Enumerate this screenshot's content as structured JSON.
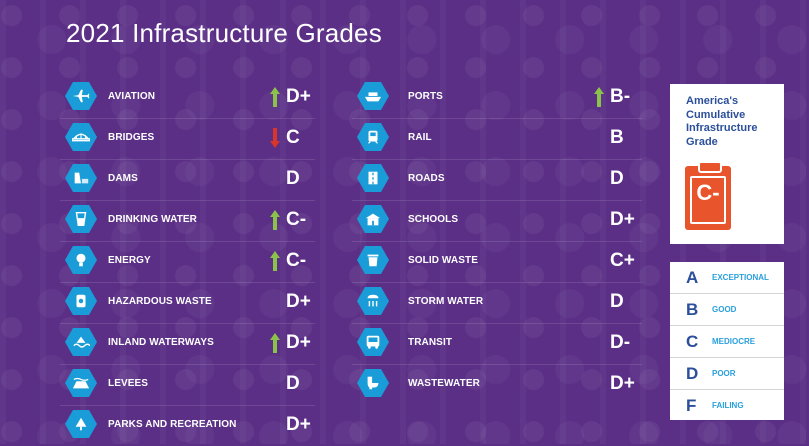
{
  "title": "2021 Infrastructure Grades",
  "colors": {
    "background": "#5b2f86",
    "icon": "#1a9cd8",
    "up": "#8bc34a",
    "down": "#d9352a",
    "cumulative": "#e8542c",
    "legend_word": "#2aa0dc"
  },
  "left_categories": [
    {
      "label": "AVIATION",
      "grade": "D+",
      "trend": "up",
      "icon": "airplane-icon"
    },
    {
      "label": "BRIDGES",
      "grade": "C",
      "trend": "down",
      "icon": "bridge-icon"
    },
    {
      "label": "DAMS",
      "grade": "D",
      "trend": "",
      "icon": "dam-icon"
    },
    {
      "label": "DRINKING WATER",
      "grade": "C-",
      "trend": "up",
      "icon": "water-glass-icon"
    },
    {
      "label": "ENERGY",
      "grade": "C-",
      "trend": "up",
      "icon": "lightbulb-icon"
    },
    {
      "label": "HAZARDOUS WASTE",
      "grade": "D+",
      "trend": "",
      "icon": "hazard-barrel-icon"
    },
    {
      "label": "INLAND WATERWAYS",
      "grade": "D+",
      "trend": "up",
      "icon": "waterway-icon"
    },
    {
      "label": "LEVEES",
      "grade": "D",
      "trend": "",
      "icon": "levee-icon"
    },
    {
      "label": "PARKS AND RECREATION",
      "grade": "D+",
      "trend": "",
      "icon": "tree-icon"
    }
  ],
  "right_categories": [
    {
      "label": "PORTS",
      "grade": "B-",
      "trend": "up",
      "icon": "ship-icon"
    },
    {
      "label": "RAIL",
      "grade": "B",
      "trend": "",
      "icon": "train-icon"
    },
    {
      "label": "ROADS",
      "grade": "D",
      "trend": "",
      "icon": "road-icon"
    },
    {
      "label": "SCHOOLS",
      "grade": "D+",
      "trend": "",
      "icon": "school-icon"
    },
    {
      "label": "SOLID WASTE",
      "grade": "C+",
      "trend": "",
      "icon": "trash-can-icon"
    },
    {
      "label": "STORM WATER",
      "grade": "D",
      "trend": "",
      "icon": "storm-drain-icon"
    },
    {
      "label": "TRANSIT",
      "grade": "D-",
      "trend": "",
      "icon": "bus-icon"
    },
    {
      "label": "WASTEWATER",
      "grade": "D+",
      "trend": "",
      "icon": "toilet-icon"
    }
  ],
  "cumulative": {
    "line1": "America's",
    "line2": "Cumulative",
    "line3": "Infrastructure",
    "line4": "Grade",
    "grade": "C-"
  },
  "legend": [
    {
      "letter": "A",
      "word": "EXCEPTIONAL"
    },
    {
      "letter": "B",
      "word": "GOOD"
    },
    {
      "letter": "C",
      "word": "MEDIOCRE"
    },
    {
      "letter": "D",
      "word": "POOR"
    },
    {
      "letter": "F",
      "word": "FAILING"
    }
  ]
}
